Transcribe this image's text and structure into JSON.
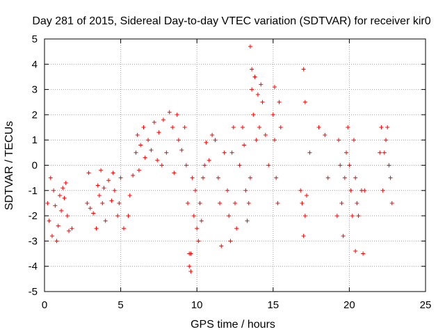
{
  "chart_data": {
    "type": "scatter",
    "title": "Day 281 of 2015, Sidereal Day-to-day VTEC variation (SDTVAR) for receiver kir0",
    "xlabel": "GPS time / hours",
    "ylabel": "SDTVAR / TECUs",
    "xlim": [
      0,
      25
    ],
    "ylim": [
      -5,
      5
    ],
    "xticks": [
      "0",
      "5",
      "10",
      "15",
      "20",
      "25"
    ],
    "yticks": [
      "-5",
      "-4",
      "-3",
      "-2",
      "-1",
      "0",
      "1",
      "2",
      "3",
      "4",
      "5"
    ],
    "grid": true,
    "marker": "+",
    "color": "#ff0000",
    "series": [
      {
        "name": "SDTVAR",
        "x": [
          0.2,
          0.3,
          0.4,
          0.5,
          0.6,
          0.7,
          0.8,
          0.9,
          1.0,
          1.1,
          1.2,
          1.3,
          1.4,
          1.5,
          1.6,
          1.8,
          2.8,
          2.9,
          3.0,
          3.2,
          3.4,
          3.5,
          3.6,
          3.7,
          3.8,
          3.9,
          4.0,
          4.2,
          4.4,
          4.5,
          4.6,
          4.8,
          4.9,
          5.0,
          5.2,
          5.5,
          5.6,
          5.8,
          6.0,
          6.1,
          6.2,
          6.3,
          6.5,
          6.6,
          6.8,
          7.0,
          7.2,
          7.4,
          7.5,
          7.7,
          7.8,
          8.0,
          8.2,
          8.4,
          8.5,
          8.7,
          8.8,
          9.0,
          9.2,
          9.3,
          9.4,
          9.5,
          9.6,
          9.7,
          9.8,
          9.9,
          10.0,
          10.1,
          10.2,
          10.3,
          10.4,
          10.5,
          10.6,
          10.8,
          11.0,
          11.2,
          11.4,
          11.5,
          11.6,
          11.8,
          12.0,
          12.1,
          12.2,
          12.3,
          12.4,
          12.5,
          12.6,
          12.8,
          13.0,
          13.1,
          13.2,
          13.3,
          13.4,
          13.5,
          13.6,
          13.7,
          13.8,
          13.9,
          14.0,
          14.1,
          14.2,
          14.3,
          14.5,
          14.7,
          15.0,
          15.1,
          15.2,
          15.3,
          15.4,
          15.5,
          16.8,
          16.9,
          17.0,
          17.1,
          17.2,
          17.4,
          18.0,
          18.4,
          18.6,
          19.2,
          19.3,
          19.4,
          19.5,
          19.6,
          19.7,
          19.8,
          19.9,
          20.0,
          20.1,
          20.2,
          20.3,
          20.4,
          20.5,
          20.6,
          20.8,
          21.0,
          22.0,
          22.1,
          22.2,
          22.3,
          22.4,
          22.5,
          22.6,
          22.7,
          22.8,
          13.5,
          13.6,
          17.0,
          17.1,
          9.5,
          9.6,
          15.1,
          20.4,
          20.9
        ],
        "y": [
          -1.5,
          -2.2,
          -0.5,
          -2.8,
          -1.0,
          -1.6,
          -3.0,
          -2.4,
          -1.2,
          -1.8,
          -0.9,
          -1.3,
          -0.7,
          -2.0,
          -2.6,
          -2.5,
          -1.5,
          -0.3,
          -1.7,
          -1.9,
          -2.5,
          -0.8,
          -1.2,
          -0.2,
          -1.5,
          -0.9,
          -2.2,
          -0.6,
          -1.4,
          -0.3,
          -1.0,
          -2.0,
          -1.5,
          -0.5,
          -2.5,
          -2.0,
          -1.2,
          -0.4,
          0.5,
          1.2,
          -0.2,
          0.8,
          1.5,
          0.3,
          1.0,
          0.6,
          1.7,
          0.2,
          1.3,
          0.0,
          1.8,
          0.5,
          2.1,
          1.5,
          -0.3,
          2.0,
          1.0,
          0.6,
          1.5,
          0.0,
          -1.5,
          -3.5,
          -4.2,
          -0.5,
          -2.0,
          -1.0,
          -2.5,
          -3.0,
          -1.5,
          -2.2,
          -0.5,
          0.0,
          0.9,
          0.2,
          1.2,
          1.0,
          -0.5,
          -1.5,
          -3.2,
          0.5,
          -1.0,
          -2.0,
          -3.0,
          0.5,
          1.5,
          -1.5,
          -2.5,
          0.0,
          1.5,
          0.8,
          -1.0,
          -2.2,
          -1.5,
          -0.5,
          3.0,
          2.0,
          3.5,
          1.0,
          2.8,
          1.5,
          3.2,
          2.5,
          1.2,
          0.0,
          2.0,
          1.0,
          -0.5,
          -1.5,
          2.5,
          1.5,
          -1.0,
          -1.5,
          -2.8,
          -2.0,
          -1.2,
          0.5,
          1.5,
          1.2,
          -0.5,
          -2.0,
          1.0,
          0.0,
          -1.5,
          -2.8,
          -0.5,
          0.5,
          1.5,
          0.0,
          -1.0,
          -2.0,
          1.0,
          -0.5,
          -1.5,
          -2.0,
          -1.0,
          -1.0,
          0.5,
          1.5,
          -1.0,
          0.5,
          1.0,
          1.5,
          0.0,
          -0.5,
          -1.5,
          4.7,
          3.8,
          3.8,
          2.5,
          -4.0,
          -3.5,
          3.1,
          -3.4,
          -3.5
        ]
      }
    ]
  }
}
